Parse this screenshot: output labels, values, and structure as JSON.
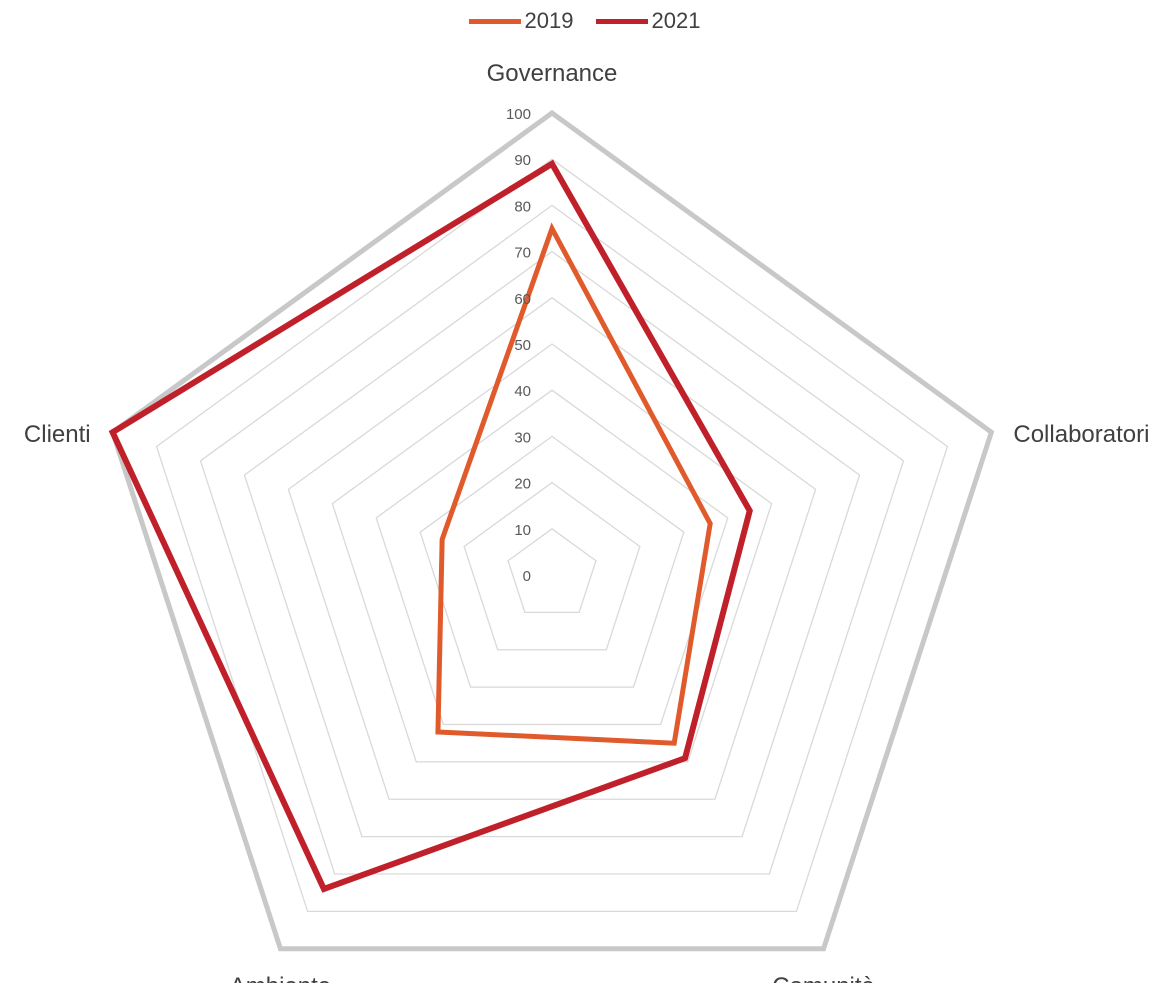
{
  "chart_data": {
    "type": "radar",
    "categories": [
      "Governance",
      "Collaboratori",
      "Comunità",
      "Ambiente",
      "Clienti"
    ],
    "ticks": [
      "0",
      "10",
      "20",
      "30",
      "40",
      "50",
      "60",
      "70",
      "80",
      "90",
      "100"
    ],
    "rlim": [
      0,
      100
    ],
    "series": [
      {
        "name": "2019",
        "values": [
          75,
          36,
          45,
          42,
          25
        ],
        "color": "#E05A2B"
      },
      {
        "name": "2021",
        "values": [
          89,
          45,
          49,
          84,
          100
        ],
        "color": "#C0202A"
      }
    ],
    "grid": true,
    "legend_position": "top",
    "grid_color": "#d9d9d9",
    "outer_grid_color": "#c8c8c8"
  }
}
